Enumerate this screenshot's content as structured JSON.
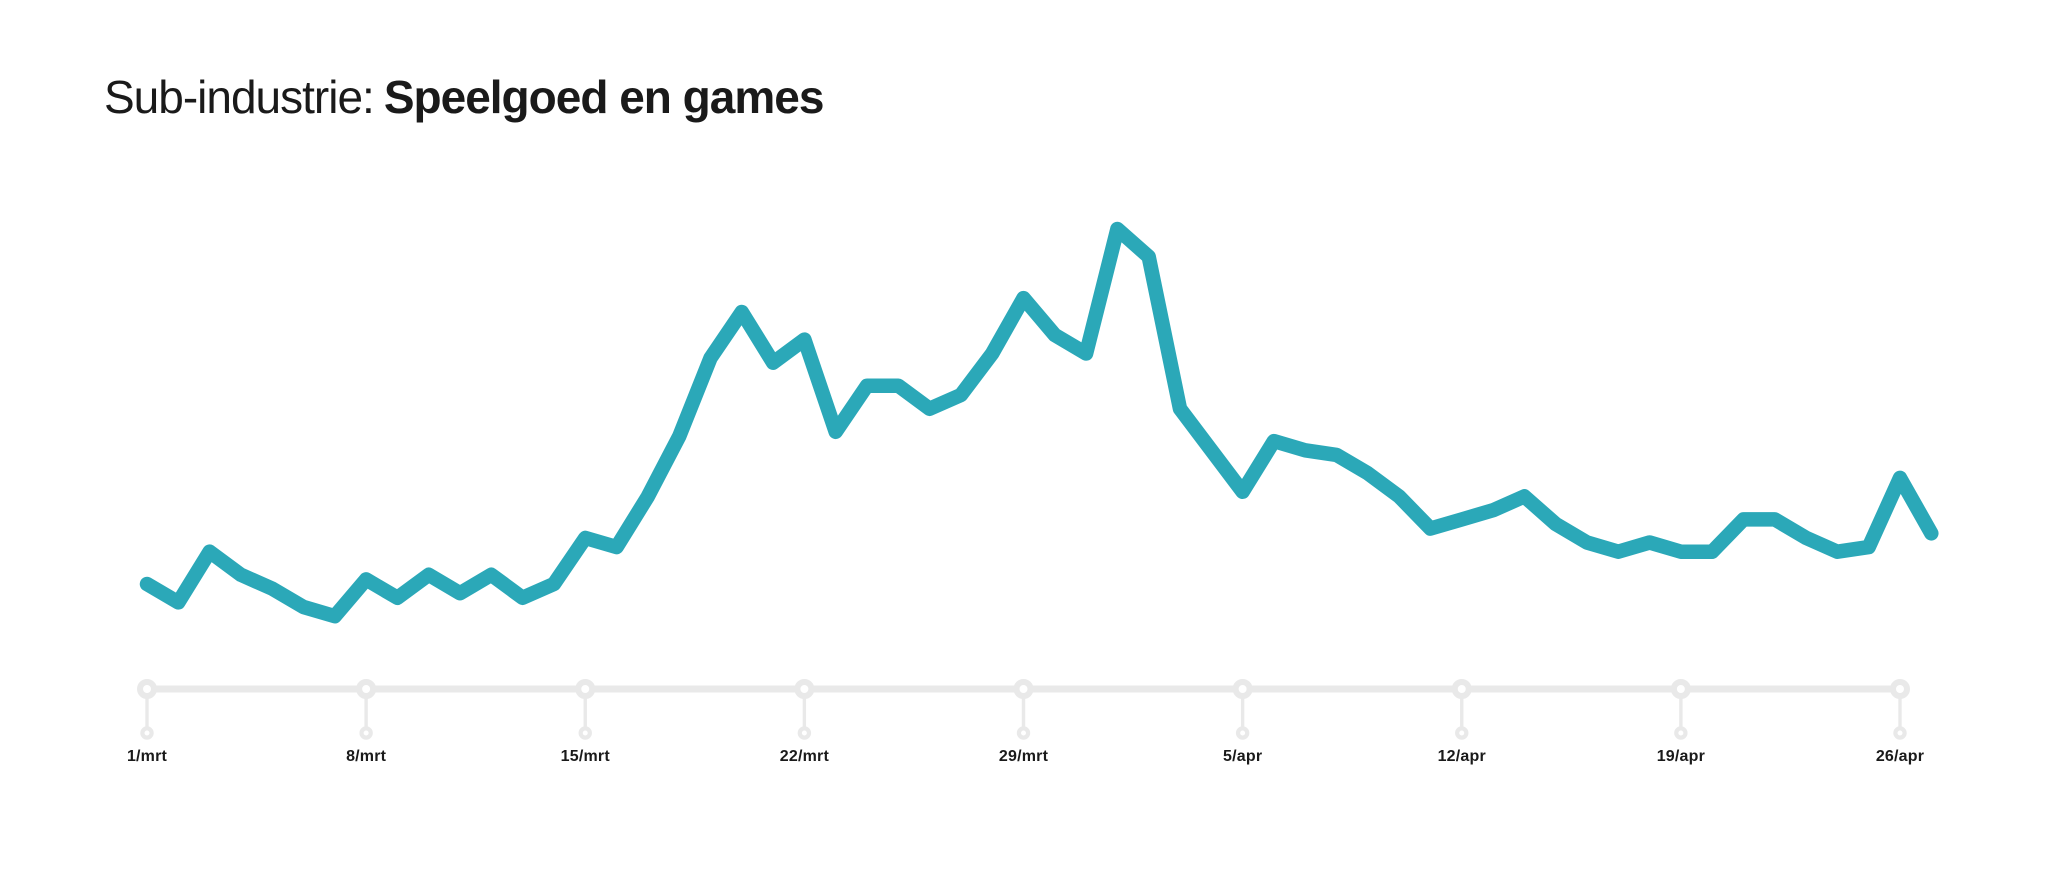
{
  "header": {
    "title_prefix": "Sub-industrie:",
    "title_highlight": "Speelgoed en games"
  },
  "chart_data": {
    "type": "line",
    "title": "Sub-industrie: Speelgoed en games",
    "xlabel": "",
    "ylabel": "",
    "ylim": [
      0,
      100
    ],
    "grid": false,
    "legend_position": "none",
    "frequency": "daily",
    "line_color": "#2BA8B8",
    "axis_color": "#E9E9E9",
    "label_color": "#1A1A1A",
    "x_tick_labels": [
      "1/mrt",
      "8/mrt",
      "15/mrt",
      "22/mrt",
      "29/mrt",
      "5/apr",
      "12/apr",
      "19/apr",
      "26/apr"
    ],
    "x": [
      "1/mrt",
      "2/mrt",
      "3/mrt",
      "4/mrt",
      "5/mrt",
      "6/mrt",
      "7/mrt",
      "8/mrt",
      "9/mrt",
      "10/mrt",
      "11/mrt",
      "12/mrt",
      "13/mrt",
      "14/mrt",
      "15/mrt",
      "16/mrt",
      "17/mrt",
      "18/mrt",
      "19/mrt",
      "20/mrt",
      "21/mrt",
      "22/mrt",
      "23/mrt",
      "24/mrt",
      "25/mrt",
      "26/mrt",
      "27/mrt",
      "28/mrt",
      "29/mrt",
      "30/mrt",
      "31/mrt",
      "1/apr",
      "2/apr",
      "3/apr",
      "4/apr",
      "5/apr",
      "6/apr",
      "7/apr",
      "8/apr",
      "9/apr",
      "10/apr",
      "11/apr",
      "12/apr",
      "13/apr",
      "14/apr",
      "15/apr",
      "16/apr",
      "17/apr",
      "18/apr",
      "19/apr",
      "20/apr",
      "21/apr",
      "22/apr",
      "23/apr",
      "24/apr",
      "25/apr",
      "26/apr",
      "27/apr"
    ],
    "series": [
      {
        "name": "Speelgoed en games",
        "values": [
          23,
          19,
          30,
          25,
          22,
          18,
          16,
          24,
          20,
          25,
          21,
          25,
          20,
          23,
          33,
          31,
          42,
          55,
          72,
          82,
          71,
          76,
          56,
          66,
          66,
          61,
          64,
          73,
          85,
          77,
          73,
          100,
          94,
          61,
          52,
          43,
          54,
          52,
          51,
          47,
          42,
          35,
          37,
          39,
          42,
          36,
          32,
          30,
          32,
          30,
          30,
          37,
          37,
          33,
          30,
          31,
          46,
          34
        ]
      }
    ]
  }
}
